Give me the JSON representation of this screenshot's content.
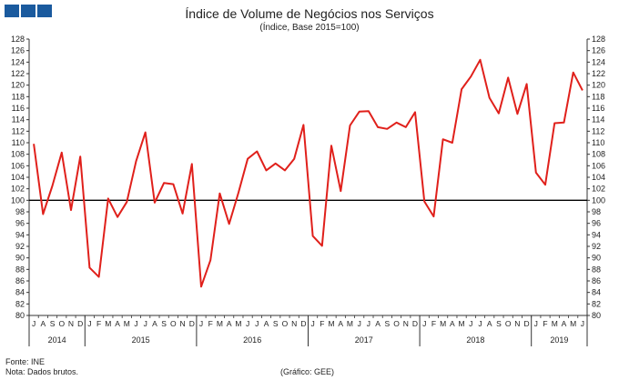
{
  "header": {
    "logo_icon": "three-blue-squares-logo"
  },
  "chart_data": {
    "type": "line",
    "title": "Índice de Volume de Negócios nos Serviços",
    "subtitle": "(Índice, Base 2015=100)",
    "xlabel": "",
    "ylabel": "",
    "ylim": [
      80,
      128
    ],
    "ytick_step": 2,
    "reference_line": 100,
    "grid": false,
    "legend": "none",
    "color": "#e0201b",
    "months": [
      "J",
      "A",
      "S",
      "O",
      "N",
      "D",
      "J",
      "F",
      "M",
      "A",
      "M",
      "J",
      "J",
      "A",
      "S",
      "O",
      "N",
      "D",
      "J",
      "F",
      "M",
      "A",
      "M",
      "J",
      "J",
      "A",
      "S",
      "O",
      "N",
      "D",
      "J",
      "F",
      "M",
      "A",
      "M",
      "J",
      "J",
      "A",
      "S",
      "O",
      "N",
      "D",
      "J",
      "F",
      "M",
      "A",
      "M",
      "J",
      "J",
      "A",
      "S",
      "O",
      "N",
      "D",
      "J",
      "F",
      "M",
      "A",
      "M",
      "J"
    ],
    "years": [
      {
        "label": "2014",
        "months": 6
      },
      {
        "label": "2015",
        "months": 12
      },
      {
        "label": "2016",
        "months": 12
      },
      {
        "label": "2017",
        "months": 12
      },
      {
        "label": "2018",
        "months": 12
      },
      {
        "label": "2019",
        "months": 6
      }
    ],
    "values": [
      109.8,
      97.6,
      102.5,
      108.3,
      98.3,
      107.6,
      88.3,
      86.7,
      100.3,
      97.1,
      99.7,
      106.8,
      111.8,
      99.6,
      103.0,
      102.8,
      97.7,
      106.3,
      85.0,
      89.6,
      101.2,
      95.9,
      101.3,
      107.2,
      108.5,
      105.2,
      106.4,
      105.2,
      107.2,
      113.1,
      93.8,
      92.1,
      109.5,
      101.6,
      113.0,
      115.4,
      115.5,
      112.7,
      112.4,
      113.5,
      112.7,
      115.3,
      99.8,
      97.2,
      110.6,
      110.0,
      119.3,
      121.5,
      124.4,
      117.8,
      115.1,
      121.3,
      115.0,
      120.2,
      104.8,
      102.7,
      113.4,
      113.5,
      122.2,
      119.1
    ]
  },
  "footer": {
    "source": "Fonte: INE",
    "note": "Nota: Dados brutos.",
    "credit": "(Gráfico: GEE)"
  }
}
